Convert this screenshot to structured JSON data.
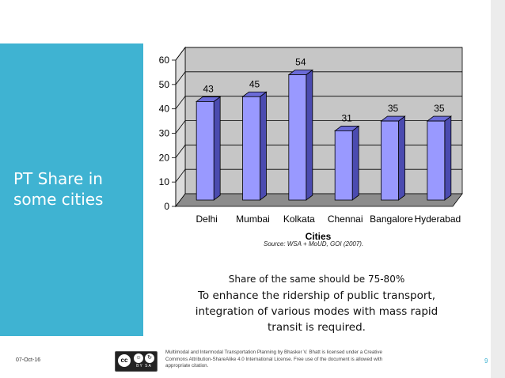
{
  "slide": {
    "title_lines": [
      "PT Share in",
      "some cities"
    ],
    "source": "Source: WSA + MoUD, GOI (2007).",
    "caption_line1": "Share of the same should be 75-80%",
    "caption_line2": "To enhance the ridership of public transport, integration of various modes with mass rapid transit is required.",
    "date": "07-Oct-16",
    "license": "Multimodal and Intermodal Transportation Planning by Bhasker V. Bhatt is licensed under a Creative Commons Attribution-ShareAlike 4.0 International License. Free use of the document is allowed with appropriate citation.",
    "page_number": "9",
    "cc_icons": [
      "cc-icon",
      "attribution-icon",
      "sharealike-icon"
    ],
    "cc_text": "BY  SA"
  },
  "colors": {
    "accent": "#3fb3d2",
    "bar_front": "#9999ff",
    "bar_side": "#4b4bb0",
    "bar_top": "#6b6bd8",
    "wall": "#c6c6c6",
    "floor": "#8c8c8c"
  },
  "chart_data": {
    "type": "bar",
    "title": "",
    "categories": [
      "Delhi",
      "Mumbai",
      "Kolkata",
      "Chennai",
      "Bangalore",
      "Hyderabad"
    ],
    "values": [
      43,
      45,
      54,
      31,
      35,
      35
    ],
    "data_labels": [
      "43",
      "45",
      "54",
      "31",
      "35",
      "35"
    ],
    "yticks": [
      0,
      10,
      20,
      30,
      40,
      50,
      60
    ],
    "ylim": [
      0,
      60
    ],
    "xlabel": "Cities",
    "ylabel": "",
    "grid": true,
    "legend": "none",
    "style": "3d"
  }
}
